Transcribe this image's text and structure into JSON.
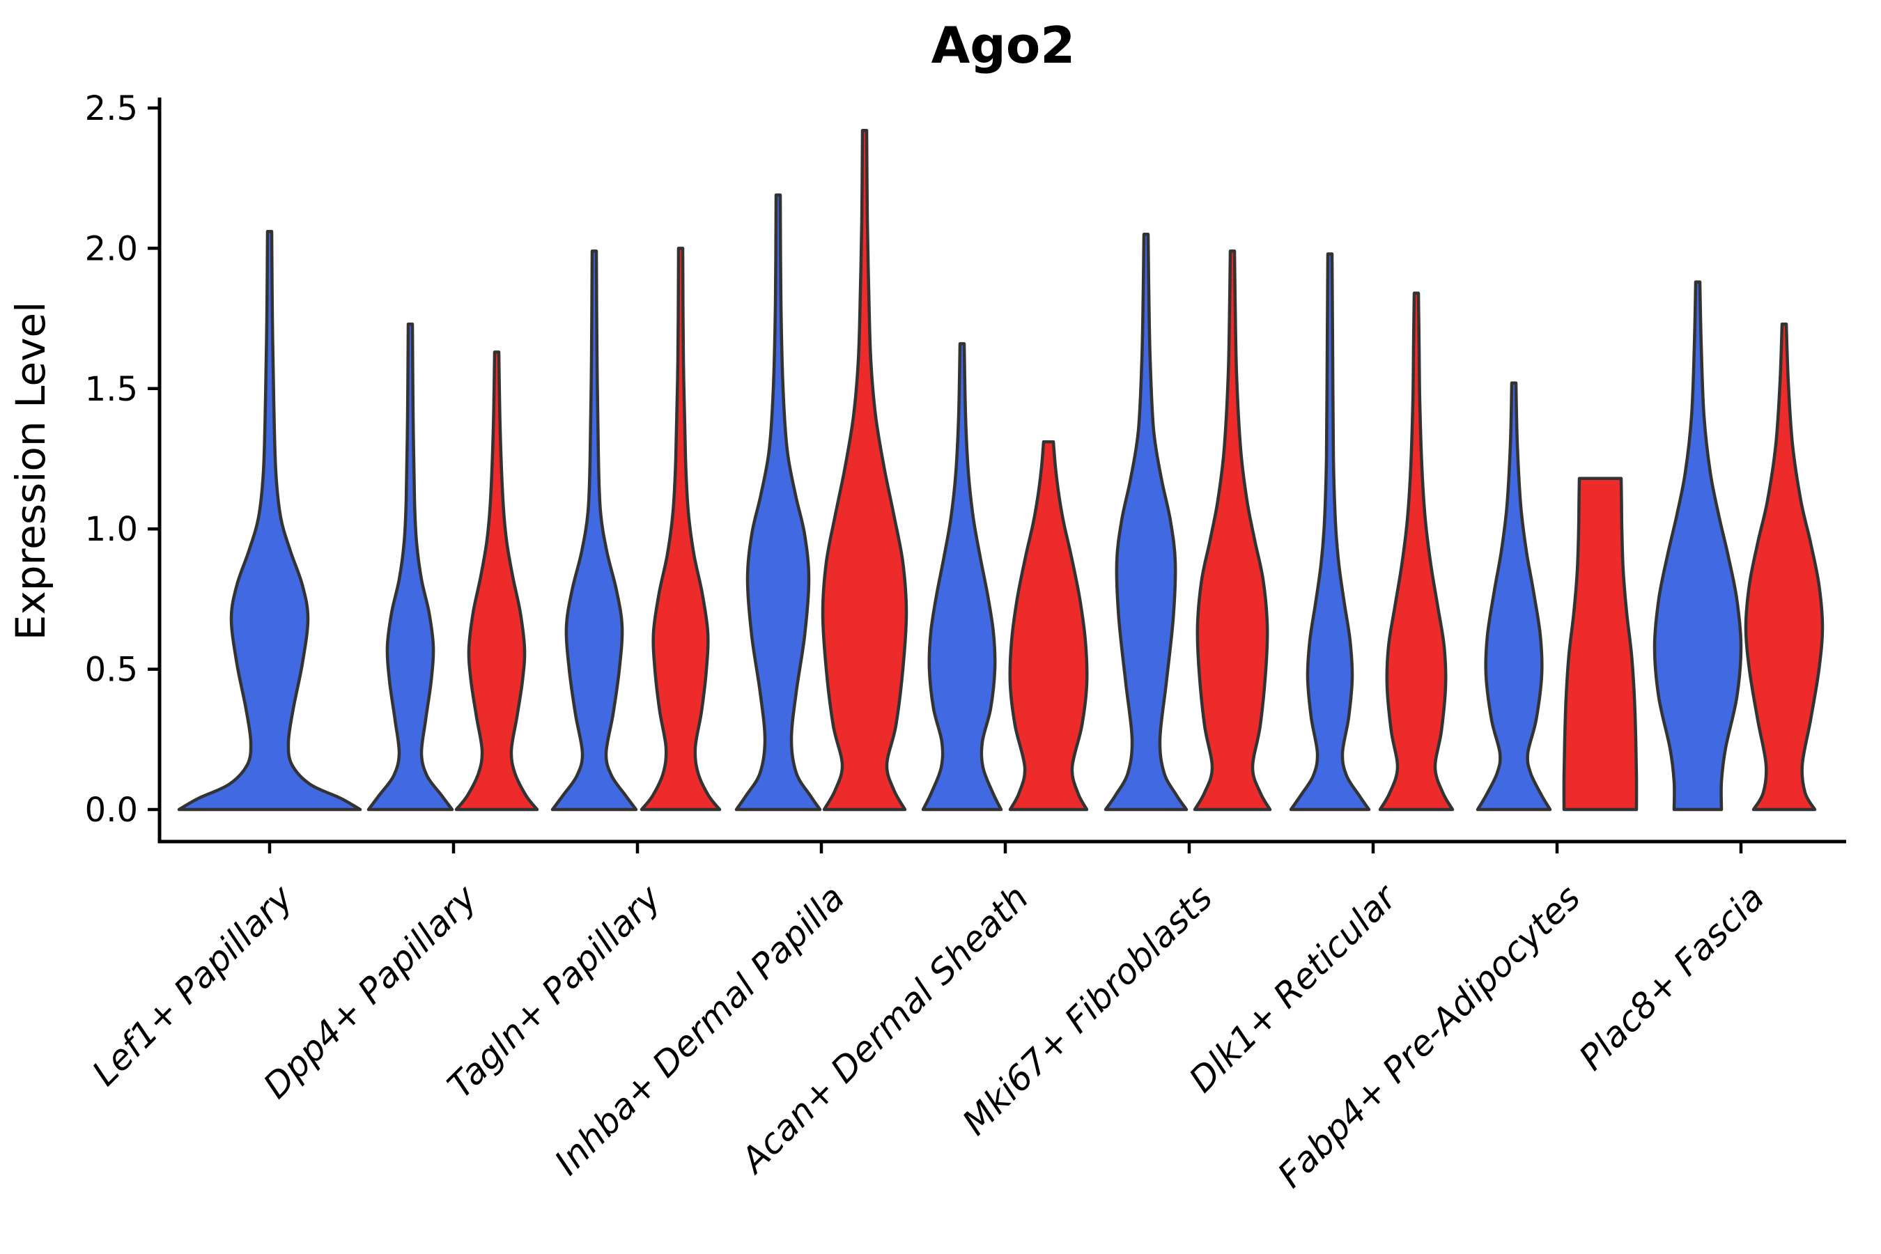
{
  "title": "Ago2",
  "y_axis": {
    "label": "Expression Level",
    "tick_labels": [
      "0.0",
      "0.5",
      "1.0",
      "1.5",
      "2.0",
      "2.5"
    ]
  },
  "x_axis": {
    "categories": [
      "Lef1+ Papillary",
      "Dpp4+ Papillary",
      "Tagln+ Papillary",
      "Inhba+ Dermal Papilla",
      "Acan+ Dermal Sheath",
      "Mki67+ Fibroblasts",
      "Dlk1+ Reticular",
      "Fabp4+ Pre-Adipocytes",
      "Plac8+ Fascia"
    ]
  },
  "colors": {
    "blue_fill": "#4169E1",
    "red_fill": "#EE2B2B",
    "violin_outline": "#333333",
    "axis": "#000000"
  },
  "chart_data": {
    "type": "violin",
    "title": "Ago2",
    "ylabel": "Expression Level",
    "ylim": [
      0,
      2.5
    ],
    "yticks": [
      0.0,
      0.5,
      1.0,
      1.5,
      2.0,
      2.5
    ],
    "grid": false,
    "legend": "none",
    "categories": [
      "Lef1+ Papillary",
      "Dpp4+ Papillary",
      "Tagln+ Papillary",
      "Inhba+ Dermal Papilla",
      "Acan+ Dermal Sheath",
      "Mki67+ Fibroblasts",
      "Dlk1+ Reticular",
      "Fabp4+ Pre-Adipocytes",
      "Plac8+ Fascia"
    ],
    "series": [
      {
        "name": "blue",
        "color": "#4169E1",
        "max_expression": [
          2.06,
          1.73,
          1.99,
          2.19,
          1.66,
          2.05,
          1.98,
          1.52,
          1.88
        ]
      },
      {
        "name": "red",
        "color": "#EE2B2B",
        "max_expression": [
          null,
          1.63,
          2.0,
          2.42,
          1.31,
          1.99,
          1.84,
          1.18,
          1.73
        ]
      }
    ],
    "violins": [
      {
        "category_index": 0,
        "color": "blue",
        "position": "full",
        "max_expression": 2.06,
        "flat_top": false,
        "profile": [
          [
            0,
            130
          ],
          [
            0.04,
            102
          ],
          [
            0.09,
            58
          ],
          [
            0.16,
            32
          ],
          [
            0.24,
            27
          ],
          [
            0.36,
            34
          ],
          [
            0.52,
            47
          ],
          [
            0.68,
            55
          ],
          [
            0.8,
            47
          ],
          [
            0.92,
            30
          ],
          [
            1.04,
            16
          ],
          [
            1.2,
            9
          ],
          [
            1.45,
            6
          ],
          [
            1.75,
            4
          ],
          [
            2.06,
            3
          ]
        ]
      },
      {
        "category_index": 1,
        "color": "blue",
        "position": "left",
        "max_expression": 1.73,
        "flat_top": false,
        "profile": [
          [
            0,
            60
          ],
          [
            0.05,
            45
          ],
          [
            0.12,
            24
          ],
          [
            0.2,
            16
          ],
          [
            0.32,
            22
          ],
          [
            0.46,
            30
          ],
          [
            0.58,
            33
          ],
          [
            0.7,
            27
          ],
          [
            0.82,
            16
          ],
          [
            0.95,
            9
          ],
          [
            1.1,
            6
          ],
          [
            1.4,
            4
          ],
          [
            1.73,
            3
          ]
        ]
      },
      {
        "category_index": 1,
        "color": "red",
        "position": "right",
        "max_expression": 1.63,
        "flat_top": false,
        "profile": [
          [
            0,
            58
          ],
          [
            0.05,
            42
          ],
          [
            0.13,
            26
          ],
          [
            0.21,
            21
          ],
          [
            0.33,
            29
          ],
          [
            0.46,
            37
          ],
          [
            0.57,
            40
          ],
          [
            0.7,
            34
          ],
          [
            0.83,
            23
          ],
          [
            0.96,
            14
          ],
          [
            1.1,
            9
          ],
          [
            1.35,
            5
          ],
          [
            1.63,
            3
          ]
        ]
      },
      {
        "category_index": 2,
        "color": "blue",
        "position": "left",
        "max_expression": 1.99,
        "flat_top": false,
        "profile": [
          [
            0,
            60
          ],
          [
            0.05,
            45
          ],
          [
            0.12,
            25
          ],
          [
            0.2,
            17
          ],
          [
            0.34,
            27
          ],
          [
            0.5,
            36
          ],
          [
            0.65,
            40
          ],
          [
            0.78,
            32
          ],
          [
            0.92,
            18
          ],
          [
            1.06,
            9
          ],
          [
            1.25,
            6
          ],
          [
            1.6,
            4
          ],
          [
            1.99,
            3
          ]
        ]
      },
      {
        "category_index": 2,
        "color": "red",
        "position": "right",
        "max_expression": 2.0,
        "flat_top": false,
        "profile": [
          [
            0,
            56
          ],
          [
            0.05,
            40
          ],
          [
            0.13,
            25
          ],
          [
            0.22,
            21
          ],
          [
            0.35,
            30
          ],
          [
            0.5,
            37
          ],
          [
            0.63,
            39
          ],
          [
            0.77,
            31
          ],
          [
            0.91,
            19
          ],
          [
            1.06,
            11
          ],
          [
            1.25,
            7
          ],
          [
            1.6,
            4
          ],
          [
            2.0,
            3
          ]
        ]
      },
      {
        "category_index": 3,
        "color": "blue",
        "position": "left",
        "max_expression": 2.19,
        "flat_top": false,
        "profile": [
          [
            0,
            60
          ],
          [
            0.05,
            46
          ],
          [
            0.13,
            26
          ],
          [
            0.25,
            19
          ],
          [
            0.42,
            26
          ],
          [
            0.62,
            38
          ],
          [
            0.82,
            44
          ],
          [
            0.98,
            38
          ],
          [
            1.12,
            25
          ],
          [
            1.28,
            13
          ],
          [
            1.5,
            7
          ],
          [
            1.8,
            4
          ],
          [
            2.19,
            3
          ]
        ]
      },
      {
        "category_index": 3,
        "color": "red",
        "position": "right",
        "max_expression": 2.42,
        "flat_top": false,
        "profile": [
          [
            0,
            58
          ],
          [
            0.07,
            42
          ],
          [
            0.16,
            32
          ],
          [
            0.3,
            45
          ],
          [
            0.5,
            55
          ],
          [
            0.7,
            60
          ],
          [
            0.88,
            55
          ],
          [
            1.05,
            42
          ],
          [
            1.22,
            28
          ],
          [
            1.4,
            16
          ],
          [
            1.6,
            9
          ],
          [
            1.85,
            6
          ],
          [
            2.1,
            4
          ],
          [
            2.42,
            3
          ]
        ]
      },
      {
        "category_index": 4,
        "color": "blue",
        "position": "left",
        "max_expression": 1.66,
        "flat_top": false,
        "profile": [
          [
            0,
            56
          ],
          [
            0.06,
            44
          ],
          [
            0.15,
            30
          ],
          [
            0.24,
            29
          ],
          [
            0.36,
            41
          ],
          [
            0.5,
            47
          ],
          [
            0.63,
            45
          ],
          [
            0.76,
            37
          ],
          [
            0.9,
            26
          ],
          [
            1.04,
            16
          ],
          [
            1.2,
            9
          ],
          [
            1.4,
            5
          ],
          [
            1.66,
            3
          ]
        ]
      },
      {
        "category_index": 4,
        "color": "red",
        "position": "right",
        "max_expression": 1.31,
        "flat_top": true,
        "profile": [
          [
            0,
            55
          ],
          [
            0.06,
            42
          ],
          [
            0.15,
            34
          ],
          [
            0.3,
            48
          ],
          [
            0.45,
            55
          ],
          [
            0.6,
            53
          ],
          [
            0.75,
            45
          ],
          [
            0.9,
            33
          ],
          [
            1.02,
            22
          ],
          [
            1.12,
            15
          ],
          [
            1.22,
            10
          ],
          [
            1.31,
            7
          ]
        ]
      },
      {
        "category_index": 5,
        "color": "blue",
        "position": "left",
        "max_expression": 2.05,
        "flat_top": false,
        "profile": [
          [
            0,
            58
          ],
          [
            0.05,
            44
          ],
          [
            0.13,
            26
          ],
          [
            0.25,
            20
          ],
          [
            0.45,
            29
          ],
          [
            0.68,
            39
          ],
          [
            0.88,
            42
          ],
          [
            1.03,
            35
          ],
          [
            1.18,
            22
          ],
          [
            1.35,
            11
          ],
          [
            1.6,
            6
          ],
          [
            1.85,
            4
          ],
          [
            2.05,
            3
          ]
        ]
      },
      {
        "category_index": 5,
        "color": "red",
        "position": "right",
        "max_expression": 1.99,
        "flat_top": false,
        "profile": [
          [
            0,
            54
          ],
          [
            0.06,
            40
          ],
          [
            0.15,
            29
          ],
          [
            0.3,
            40
          ],
          [
            0.5,
            48
          ],
          [
            0.66,
            50
          ],
          [
            0.82,
            44
          ],
          [
            0.96,
            32
          ],
          [
            1.1,
            21
          ],
          [
            1.28,
            12
          ],
          [
            1.55,
            6
          ],
          [
            1.8,
            4
          ],
          [
            1.99,
            3
          ]
        ]
      },
      {
        "category_index": 6,
        "color": "blue",
        "position": "left",
        "max_expression": 1.98,
        "flat_top": false,
        "profile": [
          [
            0,
            56
          ],
          [
            0.05,
            42
          ],
          [
            0.12,
            24
          ],
          [
            0.2,
            18
          ],
          [
            0.33,
            27
          ],
          [
            0.47,
            32
          ],
          [
            0.6,
            29
          ],
          [
            0.73,
            21
          ],
          [
            0.87,
            13
          ],
          [
            1.02,
            8
          ],
          [
            1.25,
            5
          ],
          [
            1.6,
            4
          ],
          [
            1.98,
            3
          ]
        ]
      },
      {
        "category_index": 6,
        "color": "red",
        "position": "right",
        "max_expression": 1.84,
        "flat_top": false,
        "profile": [
          [
            0,
            52
          ],
          [
            0.06,
            38
          ],
          [
            0.15,
            27
          ],
          [
            0.28,
            36
          ],
          [
            0.44,
            42
          ],
          [
            0.58,
            40
          ],
          [
            0.72,
            31
          ],
          [
            0.87,
            21
          ],
          [
            1.03,
            13
          ],
          [
            1.22,
            8
          ],
          [
            1.45,
            5
          ],
          [
            1.65,
            4
          ],
          [
            1.84,
            3
          ]
        ]
      },
      {
        "category_index": 7,
        "color": "blue",
        "position": "left",
        "max_expression": 1.52,
        "flat_top": false,
        "profile": [
          [
            0,
            52
          ],
          [
            0.05,
            40
          ],
          [
            0.13,
            24
          ],
          [
            0.2,
            20
          ],
          [
            0.32,
            32
          ],
          [
            0.48,
            40
          ],
          [
            0.62,
            38
          ],
          [
            0.78,
            28
          ],
          [
            0.92,
            18
          ],
          [
            1.08,
            10
          ],
          [
            1.3,
            5
          ],
          [
            1.52,
            3
          ]
        ]
      },
      {
        "category_index": 7,
        "color": "red",
        "position": "right",
        "max_expression": 1.18,
        "flat_top": true,
        "profile": [
          [
            0,
            52
          ],
          [
            0.12,
            52
          ],
          [
            0.25,
            51
          ],
          [
            0.4,
            49
          ],
          [
            0.55,
            45
          ],
          [
            0.7,
            38
          ],
          [
            0.85,
            33
          ],
          [
            1.0,
            31
          ],
          [
            1.1,
            30.5
          ],
          [
            1.18,
            30
          ]
        ]
      },
      {
        "category_index": 8,
        "color": "blue",
        "position": "left",
        "max_expression": 1.88,
        "flat_top": false,
        "profile": [
          [
            0,
            34
          ],
          [
            0.1,
            34
          ],
          [
            0.22,
            40
          ],
          [
            0.4,
            56
          ],
          [
            0.58,
            62
          ],
          [
            0.75,
            56
          ],
          [
            0.9,
            44
          ],
          [
            1.05,
            30
          ],
          [
            1.2,
            18
          ],
          [
            1.4,
            9
          ],
          [
            1.65,
            5
          ],
          [
            1.88,
            3
          ]
        ]
      },
      {
        "category_index": 8,
        "color": "red",
        "position": "right",
        "max_expression": 1.73,
        "flat_top": false,
        "profile": [
          [
            0,
            44
          ],
          [
            0.06,
            30
          ],
          [
            0.16,
            26
          ],
          [
            0.32,
            38
          ],
          [
            0.5,
            50
          ],
          [
            0.65,
            55
          ],
          [
            0.8,
            50
          ],
          [
            0.95,
            38
          ],
          [
            1.1,
            24
          ],
          [
            1.3,
            12
          ],
          [
            1.52,
            6
          ],
          [
            1.73,
            3
          ]
        ]
      }
    ]
  }
}
